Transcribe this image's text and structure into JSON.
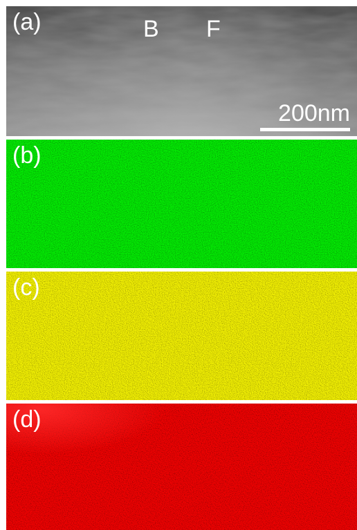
{
  "panels": [
    {
      "label": "(a)",
      "kind": "image",
      "color": "#8a8a8a"
    },
    {
      "label": "(b)",
      "kind": "map",
      "color": "#22b61c"
    },
    {
      "label": "(c)",
      "kind": "map",
      "color": "#d2cf1c"
    },
    {
      "label": "(d)",
      "kind": "map",
      "color": "#cf1414"
    }
  ],
  "markers": {
    "left": "B",
    "right": "F"
  },
  "scale_bar": {
    "text": "200nm"
  }
}
